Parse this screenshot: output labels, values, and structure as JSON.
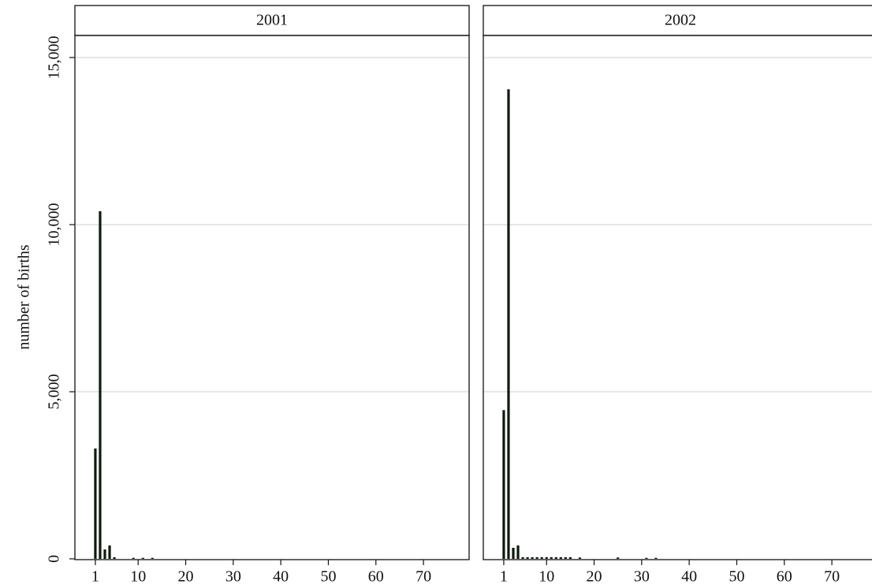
{
  "chart_data": {
    "type": "bar",
    "ylabel": "number of births",
    "ylim": [
      0,
      15660
    ],
    "yticks": [
      0,
      {
        "value": 5000,
        "label": "5,000"
      },
      {
        "value": 10000,
        "label": "10,000"
      },
      {
        "value": 15000,
        "label": "15,000"
      }
    ],
    "xlim": [
      -3.3,
      79.6
    ],
    "xticks": [
      1,
      10,
      20,
      30,
      40,
      50,
      60,
      70
    ],
    "grid": true,
    "color": "#0f1a0f",
    "panels": [
      {
        "title": "2001",
        "x": [
          1,
          2,
          3,
          4,
          5,
          9,
          11,
          13
        ],
        "values": [
          3300,
          10400,
          280,
          400,
          50,
          30,
          30,
          30
        ]
      },
      {
        "title": "2002",
        "x": [
          1,
          2,
          3,
          4,
          5,
          6,
          7,
          8,
          9,
          10,
          11,
          12,
          13,
          14,
          15,
          17,
          25,
          31,
          33
        ],
        "values": [
          4450,
          14050,
          330,
          400,
          50,
          50,
          50,
          50,
          50,
          50,
          50,
          50,
          50,
          50,
          50,
          40,
          40,
          30,
          30
        ]
      }
    ]
  }
}
